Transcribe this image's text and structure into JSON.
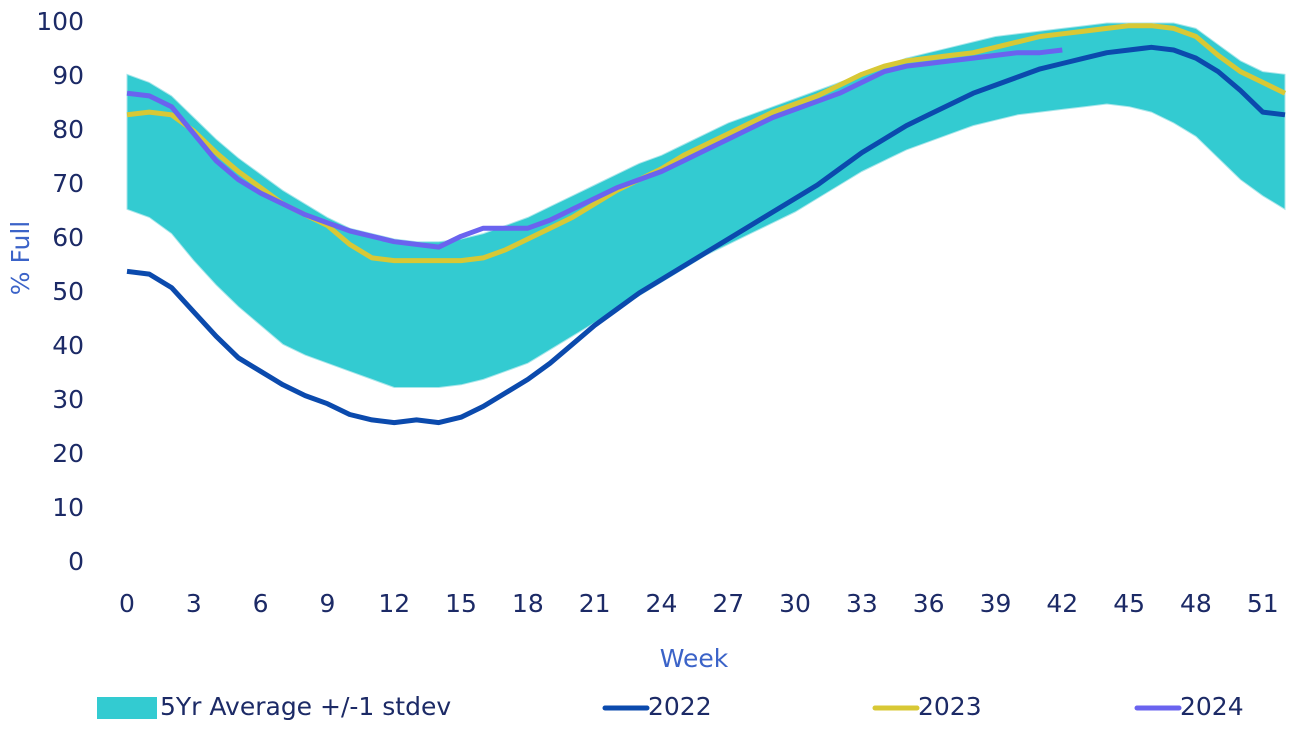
{
  "chart_data": {
    "type": "line",
    "x": [
      0,
      1,
      2,
      3,
      4,
      5,
      6,
      7,
      8,
      9,
      10,
      11,
      12,
      13,
      14,
      15,
      16,
      17,
      18,
      19,
      20,
      21,
      22,
      23,
      24,
      25,
      26,
      27,
      28,
      29,
      30,
      31,
      32,
      33,
      34,
      35,
      36,
      37,
      38,
      39,
      40,
      41,
      42,
      43,
      44,
      45,
      46,
      47,
      48,
      49,
      50,
      51,
      52
    ],
    "xlim": [
      0,
      52
    ],
    "xticks": [
      0,
      3,
      6,
      9,
      12,
      15,
      18,
      21,
      24,
      27,
      30,
      33,
      36,
      39,
      42,
      45,
      48,
      51
    ],
    "ylim": [
      0,
      100
    ],
    "yticks": [
      0,
      10,
      20,
      30,
      40,
      50,
      60,
      70,
      80,
      90,
      100
    ],
    "x_label": "Week",
    "y_label": "% Full",
    "grid": false,
    "legend": "bottom",
    "band": {
      "name": "5Yr Average +/-1 stdev",
      "color": "#33cbd1",
      "upper": [
        90.5,
        89,
        86.5,
        82.5,
        78.5,
        75,
        72,
        69,
        66.5,
        64,
        62,
        61,
        60,
        59.5,
        59.5,
        60,
        61,
        62.5,
        64,
        66,
        68,
        70,
        72,
        74,
        75.5,
        77.5,
        79.5,
        81.5,
        83,
        84.5,
        86,
        87.5,
        89,
        90.5,
        92,
        93.5,
        94.5,
        95.5,
        96.5,
        97.5,
        98,
        98.5,
        99,
        99.5,
        100,
        100,
        100,
        100,
        99,
        96,
        93,
        91,
        90.5
      ],
      "lower": [
        65.5,
        64,
        61,
        56,
        51.5,
        47.5,
        44,
        40.5,
        38.5,
        37,
        35.5,
        34,
        32.5,
        32.5,
        32.5,
        33,
        34,
        35.5,
        37,
        39.5,
        42,
        44.5,
        47,
        49.5,
        52,
        54.5,
        57,
        59,
        61,
        63,
        65,
        67.5,
        70,
        72.5,
        74.5,
        76.5,
        78,
        79.5,
        81,
        82,
        83,
        83.5,
        84,
        84.5,
        85,
        84.5,
        83.5,
        81.5,
        79,
        75,
        71,
        68,
        65.5
      ]
    },
    "series": [
      {
        "name": "2022",
        "color": "#0b4aad",
        "values": [
          54,
          53.5,
          51,
          46.5,
          42,
          38,
          35.5,
          33,
          31,
          29.5,
          27.5,
          26.5,
          26,
          26.5,
          26,
          27,
          29,
          31.5,
          34,
          37,
          40.5,
          44,
          47,
          50,
          52.5,
          55,
          57.5,
          60,
          62.5,
          65,
          67.5,
          70,
          73,
          76,
          78.5,
          81,
          83,
          85,
          87,
          88.5,
          90,
          91.5,
          92.5,
          93.5,
          94.5,
          95,
          95.5,
          95,
          93.5,
          91,
          87.5,
          83.5,
          83
        ]
      },
      {
        "name": "2023",
        "color": "#d8c835",
        "values": [
          83,
          83.5,
          83,
          80,
          76,
          72.5,
          69.5,
          66.5,
          64.5,
          62.5,
          59,
          56.5,
          56,
          56,
          56,
          56,
          56.5,
          58,
          60,
          62,
          64,
          66.5,
          69,
          71,
          73,
          75.5,
          77.5,
          79.5,
          81.5,
          83.5,
          85,
          86.5,
          88.5,
          90.5,
          92,
          93,
          93.5,
          94,
          94.5,
          95.5,
          96.5,
          97.5,
          98,
          98.5,
          99,
          99.5,
          99.5,
          99,
          97.5,
          94,
          91,
          89,
          87
        ]
      },
      {
        "name": "2024",
        "color": "#6a63ef",
        "values": [
          87,
          86.5,
          84.5,
          79.5,
          74.5,
          71,
          68.5,
          66.5,
          64.5,
          63,
          61.5,
          60.5,
          59.5,
          59,
          58.5,
          60.5,
          62,
          62,
          62,
          63.5,
          65.5,
          67.5,
          69.5,
          71,
          72.5,
          74.5,
          76.5,
          78.5,
          80.5,
          82.5,
          84,
          85.5,
          87,
          89,
          91,
          92,
          92.5,
          93,
          93.5,
          94,
          94.5,
          94.5,
          95,
          null,
          null,
          null,
          null,
          null,
          null,
          null,
          null,
          null,
          null
        ]
      }
    ]
  }
}
